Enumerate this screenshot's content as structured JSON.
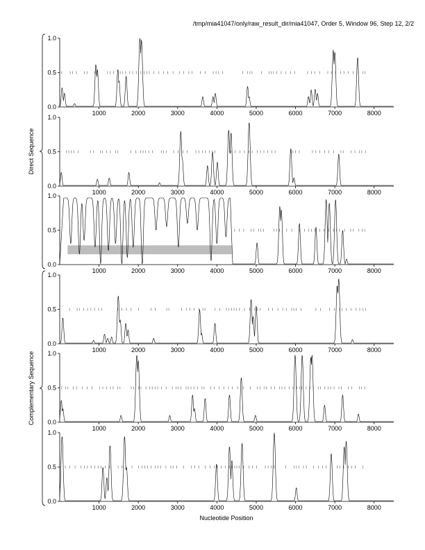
{
  "header": {
    "title": "/tmp/mia41047/only/raw_result_dir/mia41047, Order 5, Window 96, Step 12, 2/2"
  },
  "xlabel": "Nucleotide Position",
  "groups": [
    {
      "label": "Direct Sequence",
      "panels": [
        0,
        1,
        2
      ]
    },
    {
      "label": "Complementary Sequence",
      "panels": [
        3,
        4,
        5
      ]
    }
  ],
  "colors": {
    "line": "#000000",
    "ticks": "#555555",
    "band": "#bdbdbd"
  },
  "chart_data": {
    "type": "line",
    "xlim": [
      0,
      8500
    ],
    "ylim": [
      0,
      1
    ],
    "xticks": [
      1000,
      2000,
      3000,
      4000,
      5000,
      6000,
      7000,
      8000
    ],
    "yticks": [
      0.0,
      0.5,
      1.0
    ],
    "ytick_labels": [
      "0.0",
      "0.5",
      "1.0"
    ],
    "panels": [
      {
        "peaks": [
          [
            60,
            0.28
          ],
          [
            120,
            0.2
          ],
          [
            380,
            0.05
          ],
          [
            920,
            0.62
          ],
          [
            960,
            0.55
          ],
          [
            1480,
            0.55
          ],
          [
            1510,
            0.38
          ],
          [
            1690,
            0.45
          ],
          [
            2040,
            1.0
          ],
          [
            2080,
            0.98
          ],
          [
            3640,
            0.15
          ],
          [
            3900,
            0.15
          ],
          [
            3960,
            0.2
          ],
          [
            4780,
            0.3
          ],
          [
            4820,
            0.15
          ],
          [
            6330,
            0.15
          ],
          [
            6400,
            0.25
          ],
          [
            6500,
            0.26
          ],
          [
            6560,
            0.2
          ],
          [
            6960,
            0.83
          ],
          [
            7000,
            0.8
          ],
          [
            7580,
            0.72
          ]
        ],
        "ticks": {
          "start": 50,
          "end": 7800,
          "step": 95,
          "y": 0.5
        },
        "baseline": 0.01
      },
      {
        "peaks": [
          [
            40,
            0.2
          ],
          [
            960,
            0.1
          ],
          [
            1260,
            0.12
          ],
          [
            1760,
            0.2
          ],
          [
            2540,
            0.05
          ],
          [
            3080,
            0.8
          ],
          [
            3120,
            0.4
          ],
          [
            3760,
            0.3
          ],
          [
            3890,
            0.5
          ],
          [
            4010,
            0.35
          ],
          [
            4300,
            0.82
          ],
          [
            4360,
            0.78
          ],
          [
            4820,
            0.93
          ],
          [
            5880,
            0.55
          ],
          [
            5960,
            0.12
          ],
          [
            7100,
            0.47
          ]
        ],
        "ticks": {
          "start": 50,
          "end": 7800,
          "step": 95,
          "y": 0.5
        },
        "baseline": 0.01
      },
      {
        "dips": [
          [
            280,
            0.3
          ],
          [
            500,
            0.15
          ],
          [
            620,
            0.35
          ],
          [
            900,
            0.25
          ],
          [
            1040,
            0.0
          ],
          [
            1240,
            0.2
          ],
          [
            1420,
            0.3
          ],
          [
            1580,
            0.0
          ],
          [
            1720,
            0.1
          ],
          [
            1870,
            0.25
          ],
          [
            2100,
            0.0
          ],
          [
            2450,
            0.5
          ],
          [
            2720,
            0.55
          ],
          [
            3020,
            0.25
          ],
          [
            3250,
            0.6
          ],
          [
            3500,
            0.5
          ],
          [
            3850,
            0.05
          ],
          [
            4000,
            0.3
          ],
          [
            4230,
            0.4
          ]
        ],
        "high_end": 4400,
        "peaks": [
          [
            5020,
            0.32
          ],
          [
            5600,
            0.85
          ],
          [
            5640,
            0.8
          ],
          [
            6100,
            0.6
          ],
          [
            6520,
            0.55
          ],
          [
            6780,
            0.95
          ],
          [
            6860,
            0.9
          ],
          [
            7020,
            0.95
          ],
          [
            7200,
            0.5
          ],
          [
            7300,
            0.08
          ]
        ],
        "ticks": {
          "start": 4450,
          "end": 7800,
          "step": 95,
          "y": 0.5
        },
        "band": {
          "x0": 200,
          "x1": 4380,
          "y0": 0.15,
          "y1": 0.28
        },
        "baseline": 0.01
      },
      {
        "peaks": [
          [
            80,
            0.38
          ],
          [
            860,
            0.05
          ],
          [
            1140,
            0.14
          ],
          [
            1220,
            0.08
          ],
          [
            1320,
            0.1
          ],
          [
            1490,
            0.7
          ],
          [
            1540,
            0.35
          ],
          [
            1680,
            0.3
          ],
          [
            1740,
            0.2
          ],
          [
            2390,
            0.08
          ],
          [
            3560,
            0.5
          ],
          [
            3610,
            0.15
          ],
          [
            3950,
            0.3
          ],
          [
            4870,
            0.65
          ],
          [
            4920,
            0.4
          ],
          [
            5000,
            0.55
          ],
          [
            7060,
            0.85
          ],
          [
            7100,
            0.95
          ],
          [
            7450,
            0.06
          ]
        ],
        "ticks": {
          "start": 250,
          "end": 7800,
          "step": 95,
          "y": 0.5
        },
        "baseline": 0.01
      },
      {
        "peaks": [
          [
            40,
            0.32
          ],
          [
            80,
            0.2
          ],
          [
            1560,
            0.1
          ],
          [
            1960,
            0.98
          ],
          [
            2000,
            0.9
          ],
          [
            2800,
            0.1
          ],
          [
            3380,
            0.4
          ],
          [
            3430,
            0.2
          ],
          [
            3700,
            0.35
          ],
          [
            4320,
            0.4
          ],
          [
            4620,
            0.65
          ],
          [
            4980,
            0.1
          ],
          [
            5990,
            0.98
          ],
          [
            6170,
            0.98
          ],
          [
            6390,
            0.95
          ],
          [
            6420,
            0.98
          ],
          [
            6740,
            0.25
          ],
          [
            7200,
            0.4
          ],
          [
            7600,
            0.12
          ]
        ],
        "ticks": {
          "start": 50,
          "end": 7800,
          "step": 95,
          "y": 0.5
        },
        "baseline": 0.01
      },
      {
        "peaks": [
          [
            60,
            0.95
          ],
          [
            1100,
            0.5
          ],
          [
            1200,
            0.35
          ],
          [
            1280,
            0.82
          ],
          [
            1650,
            0.95
          ],
          [
            1700,
            0.5
          ],
          [
            3990,
            0.55
          ],
          [
            4320,
            0.8
          ],
          [
            4380,
            0.6
          ],
          [
            4640,
            0.85
          ],
          [
            5460,
            1.0
          ],
          [
            6020,
            0.2
          ],
          [
            6910,
            0.7
          ],
          [
            7240,
            0.8
          ],
          [
            7290,
            0.88
          ]
        ],
        "ticks": {
          "start": 50,
          "end": 7800,
          "step": 95,
          "y": 0.5
        },
        "baseline": 0.01
      }
    ]
  }
}
